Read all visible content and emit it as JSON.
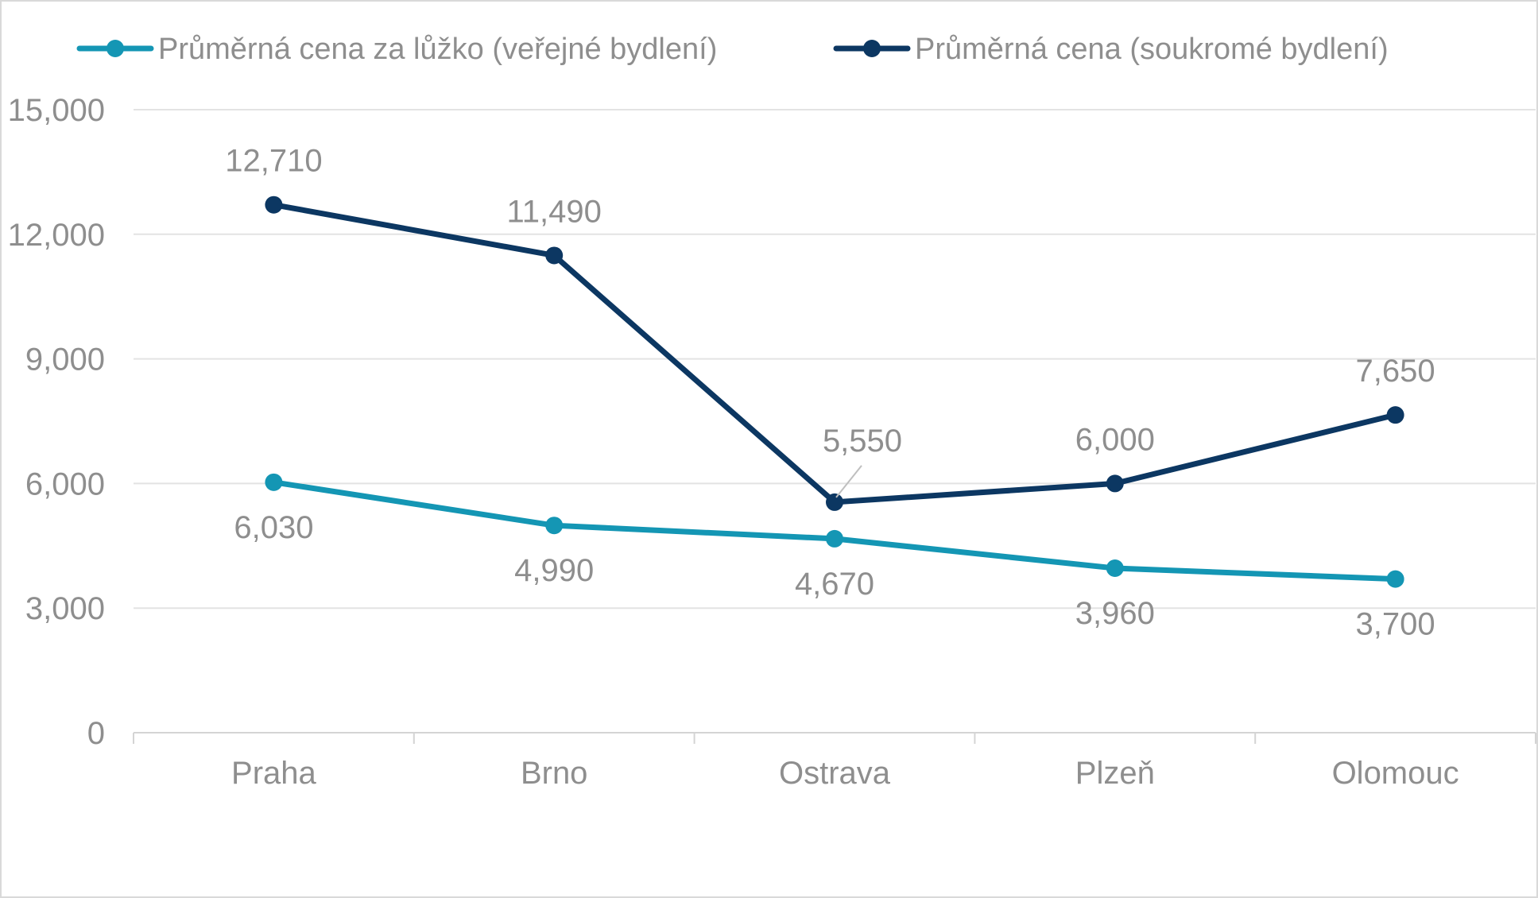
{
  "chart_data": {
    "type": "line",
    "title": "",
    "xlabel": "",
    "ylabel": "",
    "categories": [
      "Praha",
      "Brno",
      "Ostrava",
      "Plzeň",
      "Olomouc"
    ],
    "series": [
      {
        "name": "Průměrná cena za lůžko (veřejné bydlení)",
        "color": "#1496b4",
        "values": [
          6030,
          4990,
          4670,
          3960,
          3700
        ],
        "labels": [
          "6,030",
          "4,990",
          "4,670",
          "3,960",
          "3,700"
        ],
        "label_position": "below"
      },
      {
        "name": "Průměrná cena (soukromé bydlení)",
        "color": "#0c3762",
        "values": [
          12710,
          11490,
          5550,
          6000,
          7650
        ],
        "labels": [
          "12,710",
          "11,490",
          "5,550",
          "6,000",
          "7,650"
        ],
        "label_position": "above"
      }
    ],
    "ylim": [
      0,
      15000
    ],
    "yticks": [
      0,
      3000,
      6000,
      9000,
      12000,
      15000
    ],
    "ytick_labels": [
      "0",
      "3,000",
      "6,000",
      "9,000",
      "12,000",
      "15,000"
    ],
    "grid": true,
    "legend_position": "top"
  }
}
